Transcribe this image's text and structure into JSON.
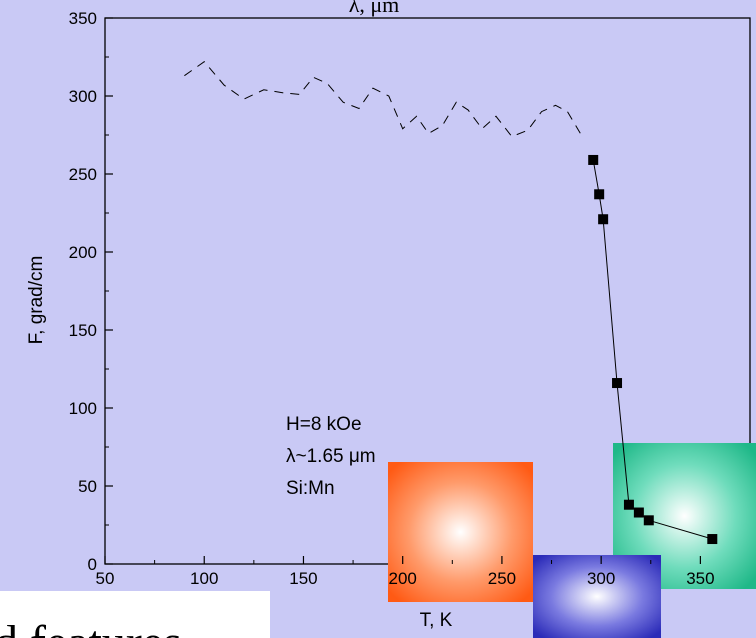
{
  "chart_data": {
    "type": "scatter",
    "top_title": "λ, μm",
    "xlabel": "T, K",
    "ylabel": "F, grad/cm",
    "xlim": [
      50,
      375
    ],
    "ylim": [
      0,
      350
    ],
    "xticks": [
      50,
      100,
      150,
      200,
      250,
      300,
      350
    ],
    "yticks": [
      0,
      50,
      100,
      150,
      200,
      250,
      300,
      350
    ],
    "annotations": [
      "H=8 kOe",
      "λ~1.65 μm",
      "Si:Mn"
    ],
    "series": [
      {
        "style": "dashed-line",
        "x": [
          90,
          100,
          110,
          120,
          130,
          140,
          148,
          155,
          162,
          170,
          178,
          185,
          193,
          200,
          207,
          213,
          220,
          227,
          233,
          240,
          247,
          255,
          263,
          270,
          277,
          283,
          290
        ],
        "y": [
          313,
          322,
          307,
          298,
          304,
          302,
          301,
          312,
          308,
          296,
          292,
          305,
          300,
          279,
          287,
          276,
          281,
          296,
          291,
          279,
          287,
          274,
          278,
          290,
          294,
          290,
          275
        ]
      },
      {
        "style": "line-with-squares",
        "x": [
          296,
          299,
          301,
          308,
          314,
          319,
          324,
          356
        ],
        "y": [
          259,
          237,
          221,
          116,
          38,
          33,
          28,
          16
        ]
      }
    ],
    "grid": false
  },
  "overlay_text": "d features",
  "colors": {
    "background": "#c9c9f5",
    "plot_area": "#c9c9f5",
    "orange_square": "#ff6a2a",
    "blue_square": "#3d3dc8",
    "green_square": "#3dcaa0"
  }
}
